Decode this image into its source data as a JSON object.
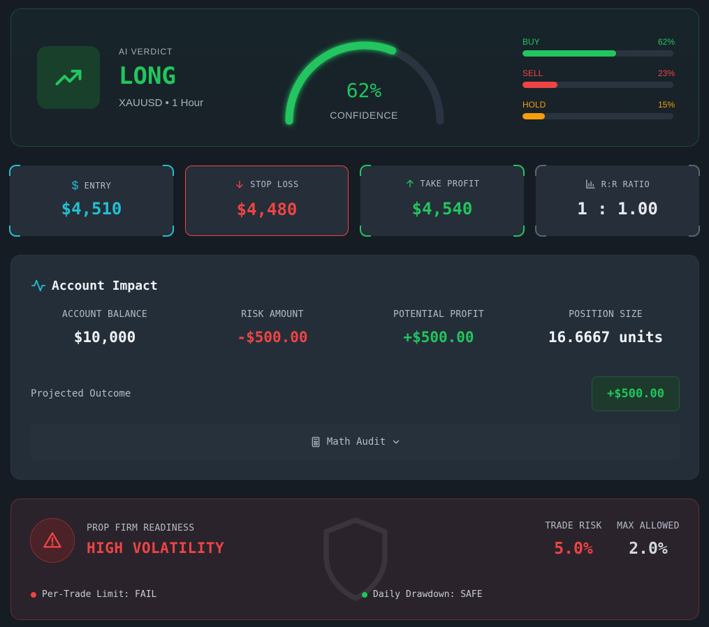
{
  "verdict": {
    "label": "AI VERDICT",
    "value": "LONG",
    "symbol_timeframe": "XAUUSD • 1 Hour",
    "icon": "trending-up-icon",
    "confidence_pct": 62,
    "confidence_text": "62%",
    "confidence_label": "CONFIDENCE",
    "accent": "#22c55e"
  },
  "distribution": [
    {
      "label": "BUY",
      "pct_text": "62%",
      "value": 62,
      "color": "#22c55e"
    },
    {
      "label": "SELL",
      "pct_text": "23%",
      "value": 23,
      "color": "#ef4444"
    },
    {
      "label": "HOLD",
      "pct_text": "15%",
      "value": 15,
      "color": "#f59e0b"
    }
  ],
  "levels": [
    {
      "icon": "dollar-icon",
      "label": "ENTRY",
      "value": "$4,510",
      "color": "#22c0cf"
    },
    {
      "icon": "arrow-down-icon",
      "label": "STOP LOSS",
      "value": "$4,480",
      "color": "#ef4444"
    },
    {
      "icon": "arrow-up-icon",
      "label": "TAKE PROFIT",
      "value": "$4,540",
      "color": "#22c55e"
    },
    {
      "icon": "bar-chart-icon",
      "label": "R:R RATIO",
      "value": "1 : 1.00",
      "color": "#e6e9ee"
    }
  ],
  "impact": {
    "title": "Account Impact",
    "icon": "activity-icon",
    "metrics": [
      {
        "label": "ACCOUNT BALANCE",
        "value": "$10,000",
        "color": "#f2f4f7"
      },
      {
        "label": "RISK AMOUNT",
        "value": "-$500.00",
        "color": "#ef4444"
      },
      {
        "label": "POTENTIAL PROFIT",
        "value": "+$500.00",
        "color": "#22c55e"
      },
      {
        "label": "POSITION SIZE",
        "value": "16.6667 units",
        "color": "#f2f4f7"
      }
    ],
    "projected_label": "Projected Outcome",
    "projected_value": "+$500.00",
    "audit_label": "Math Audit"
  },
  "prop_firm": {
    "label": "PROP FIRM READINESS",
    "status": "HIGH VOLATILITY",
    "trade_risk_label": "TRADE RISK",
    "trade_risk_value": "5.0%",
    "max_allowed_label": "MAX ALLOWED",
    "max_allowed_value": "2.0%",
    "checks": [
      {
        "text": "Per-Trade Limit: FAIL",
        "color": "#ef4444"
      },
      {
        "text": "Daily Drawdown: SAFE",
        "color": "#22c55e"
      }
    ]
  }
}
